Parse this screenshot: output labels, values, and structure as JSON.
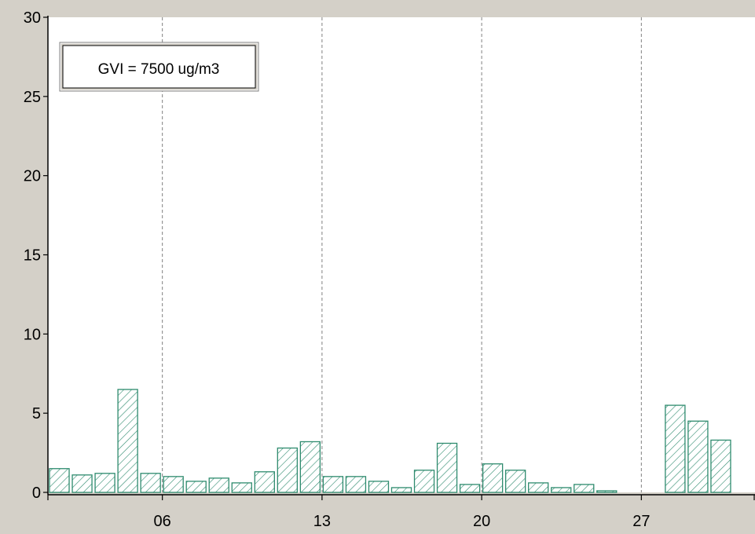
{
  "window": {
    "background": "#d4d0c8"
  },
  "legend_box": {
    "label": "GVI = 7500 ug/m3"
  },
  "chart_data": {
    "type": "bar",
    "title": "",
    "xlabel": "",
    "ylabel": "",
    "ylim": [
      0,
      30
    ],
    "yticks": [
      0,
      5,
      10,
      15,
      20,
      25,
      30
    ],
    "xlim": [
      1,
      32
    ],
    "xticks": [
      {
        "day": 6,
        "label": "06"
      },
      {
        "day": 13,
        "label": "13"
      },
      {
        "day": 20,
        "label": "20"
      },
      {
        "day": 27,
        "label": "27"
      }
    ],
    "grid": {
      "vertical_dashed_at_days": [
        6,
        13,
        20,
        27
      ],
      "horizontal": false
    },
    "days": [
      1,
      2,
      3,
      4,
      5,
      6,
      7,
      8,
      9,
      10,
      11,
      12,
      13,
      14,
      15,
      16,
      17,
      18,
      19,
      20,
      21,
      22,
      23,
      24,
      25,
      26,
      27,
      28,
      29,
      30,
      31
    ],
    "values": [
      1.5,
      1.1,
      1.2,
      6.5,
      1.2,
      1.0,
      0.7,
      0.9,
      0.6,
      1.3,
      2.8,
      3.2,
      1.0,
      1.0,
      0.7,
      0.3,
      1.4,
      3.1,
      0.5,
      1.8,
      1.4,
      0.6,
      0.3,
      0.5,
      0.1,
      null,
      null,
      5.5,
      4.5,
      3.3,
      null
    ],
    "colors": {
      "bar_stroke": "#2e8b6e",
      "bar_fill": "#ffffff",
      "hatch": "#2e8b6e",
      "plot_bg": "#ffffff",
      "axis": "#000000",
      "grid": "#808080"
    }
  }
}
